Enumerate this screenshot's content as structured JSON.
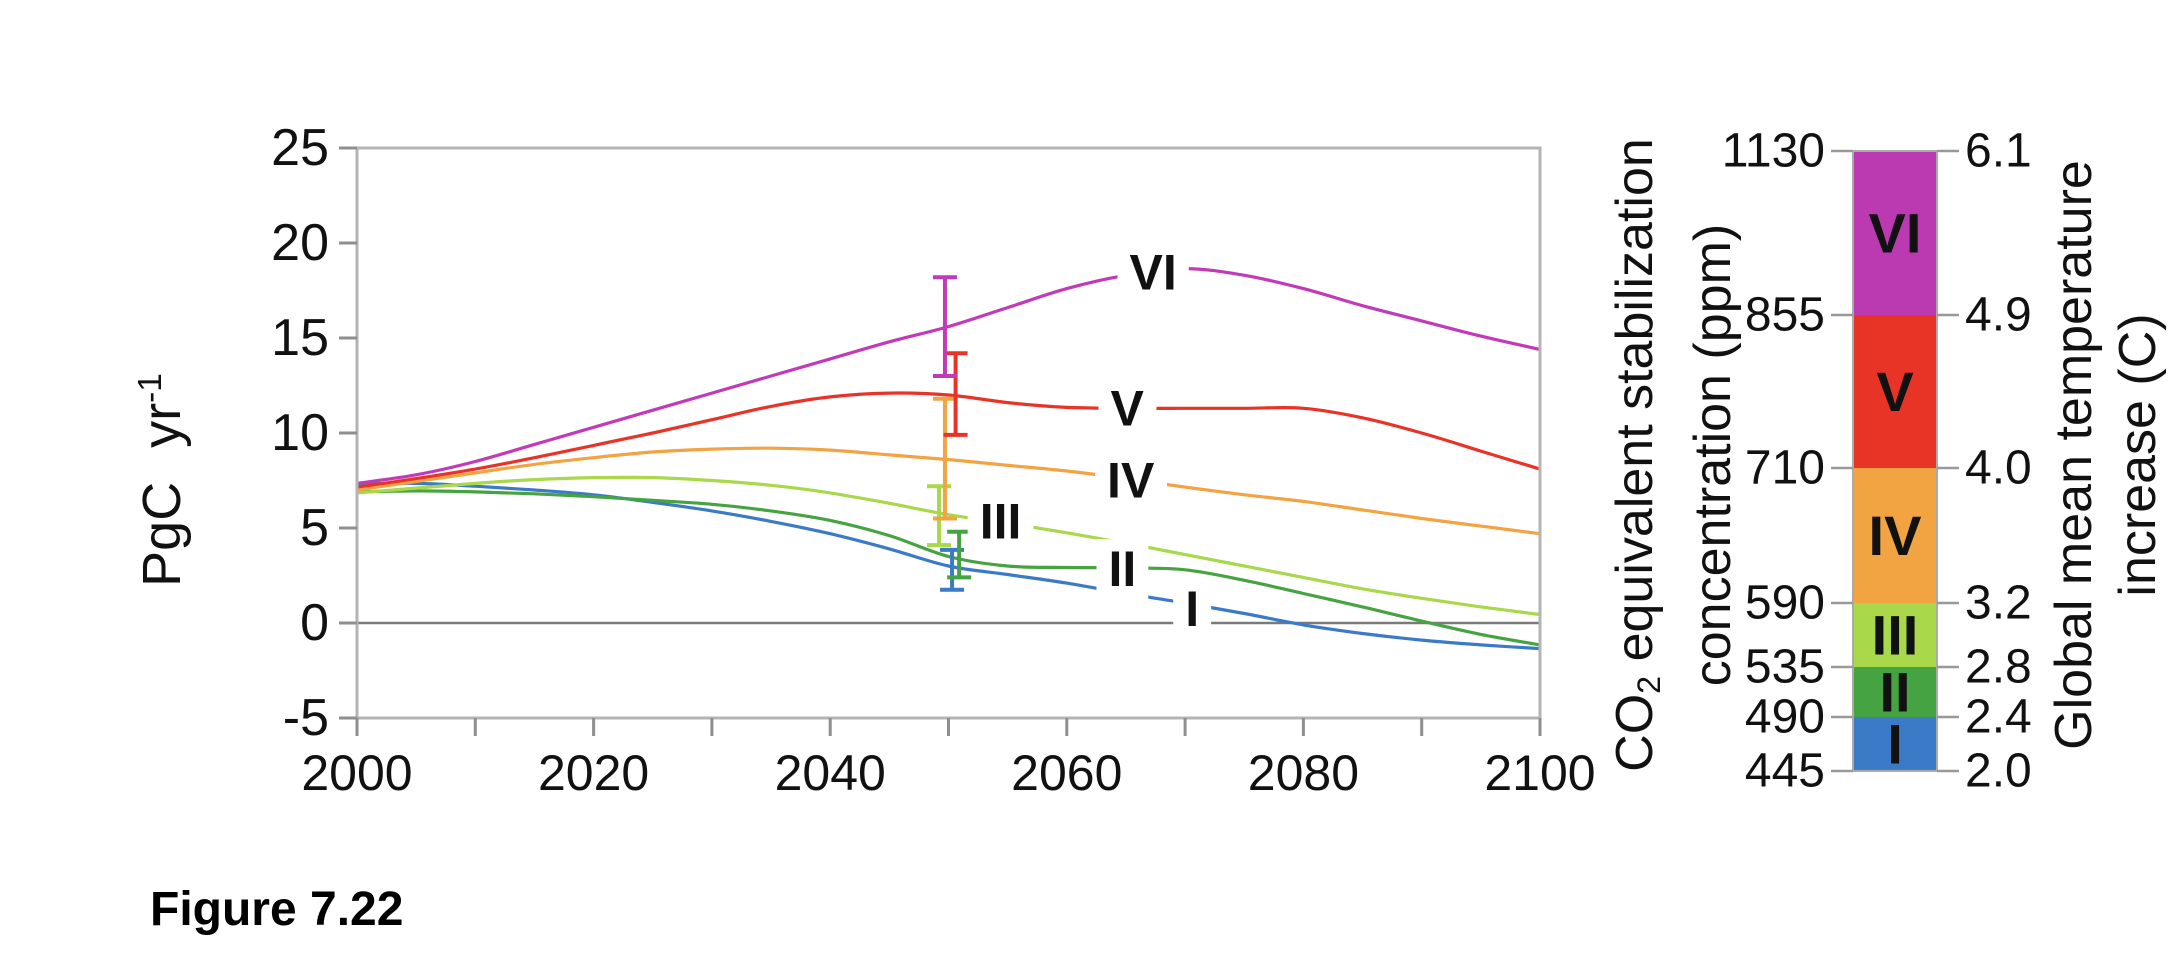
{
  "figure": {
    "caption": "Figure 7.22"
  },
  "axes": {
    "ylabel_base": "PgC yr",
    "ylabel_sup": "-1",
    "x_tick_labels": [
      "2000",
      "2020",
      "2040",
      "2060",
      "2080",
      "2100"
    ],
    "x_tick_years_labeled": [
      2000,
      2020,
      2040,
      2060,
      2080,
      2100
    ],
    "x_tick_years_minor": [
      2010,
      2030,
      2050,
      2070,
      2090
    ],
    "y_tick_values": [
      25,
      20,
      15,
      10,
      5,
      0,
      -5
    ],
    "y_tick_labels": [
      "25",
      "20",
      "15",
      "10",
      "5",
      "0",
      "-5"
    ]
  },
  "chart_data": {
    "type": "line",
    "title": "",
    "xlabel": "",
    "ylabel": "PgC yr-1",
    "xlim": [
      2000,
      2100
    ],
    "ylim": [
      -5,
      25
    ],
    "grid": false,
    "zero_line": true,
    "legend_position": "right-colorbar",
    "x": [
      2000,
      2005,
      2010,
      2015,
      2020,
      2025,
      2030,
      2035,
      2040,
      2045,
      2050,
      2055,
      2060,
      2065,
      2070,
      2075,
      2080,
      2085,
      2090,
      2095,
      2100
    ],
    "series": [
      {
        "name": "I",
        "color": "#3b7ac6",
        "values": [
          7.3,
          7.35,
          7.2,
          7.0,
          6.75,
          6.35,
          5.9,
          5.35,
          4.7,
          3.9,
          3.0,
          2.55,
          2.1,
          1.55,
          1.05,
          0.5,
          -0.1,
          -0.55,
          -0.9,
          -1.15,
          -1.35
        ],
        "label": {
          "x": 2070.6,
          "y": 0.75
        },
        "errorbar": {
          "x": 2050.3,
          "lo": 1.75,
          "hi": 3.85
        }
      },
      {
        "name": "II",
        "color": "#46a341",
        "values": [
          6.9,
          6.95,
          6.9,
          6.8,
          6.65,
          6.45,
          6.25,
          5.9,
          5.4,
          4.6,
          3.5,
          3.0,
          2.92,
          2.9,
          2.8,
          2.25,
          1.55,
          0.85,
          0.1,
          -0.6,
          -1.15
        ],
        "label": {
          "x": 2064.7,
          "y": 2.83
        },
        "errorbar": {
          "x": 2050.9,
          "lo": 2.4,
          "hi": 4.8
        }
      },
      {
        "name": "III",
        "color": "#a9d84b",
        "values": [
          6.85,
          7.1,
          7.35,
          7.55,
          7.65,
          7.65,
          7.5,
          7.25,
          6.85,
          6.3,
          5.7,
          5.25,
          4.75,
          4.2,
          3.6,
          3.0,
          2.4,
          1.8,
          1.3,
          0.85,
          0.45
        ],
        "label": {
          "x": 2054.4,
          "y": 5.35
        },
        "errorbar": {
          "x": 2049.2,
          "lo": 4.1,
          "hi": 7.2
        }
      },
      {
        "name": "IV",
        "color": "#f2a342",
        "values": [
          7.0,
          7.45,
          7.9,
          8.35,
          8.7,
          9.0,
          9.15,
          9.2,
          9.1,
          8.85,
          8.6,
          8.3,
          8.0,
          7.6,
          7.15,
          6.75,
          6.4,
          5.95,
          5.5,
          5.1,
          4.7
        ],
        "label": {
          "x": 2065.4,
          "y": 7.5
        },
        "errorbar": {
          "x": 2049.7,
          "lo": 5.5,
          "hi": 11.8
        }
      },
      {
        "name": "V",
        "color": "#e83327",
        "values": [
          7.15,
          7.6,
          8.1,
          8.7,
          9.35,
          10.0,
          10.7,
          11.4,
          11.9,
          12.1,
          12.0,
          11.6,
          11.35,
          11.3,
          11.3,
          11.3,
          11.3,
          10.8,
          10.0,
          9.05,
          8.1
        ],
        "label": {
          "x": 2065.1,
          "y": 11.3
        },
        "errorbar": {
          "x": 2050.6,
          "lo": 9.9,
          "hi": 14.2
        }
      },
      {
        "name": "VI",
        "color": "#c23ab8",
        "values": [
          7.35,
          7.8,
          8.5,
          9.4,
          10.3,
          11.2,
          12.1,
          13.0,
          13.9,
          14.8,
          15.6,
          16.6,
          17.6,
          18.3,
          18.65,
          18.3,
          17.6,
          16.7,
          15.9,
          15.1,
          14.4
        ],
        "label": {
          "x": 2067.3,
          "y": 18.45
        },
        "errorbar": {
          "x": 2049.7,
          "lo": 13.0,
          "hi": 18.2
        }
      }
    ]
  },
  "colorbar": {
    "left_title_line1_base": "CO",
    "left_title_line1_sub": "2",
    "left_title_line1_rest": " equivalent stabilization",
    "left_title_line2": "concentration (ppm)",
    "right_title_line1": "Global mean temperature",
    "right_title_line2": "increase (C)",
    "levels_ppm": [
      "1130",
      "855",
      "710",
      "590",
      "535",
      "490",
      "445"
    ],
    "levels_temp": [
      "6.1",
      "4.9",
      "4.0",
      "3.2",
      "2.8",
      "2.4",
      "2.0"
    ],
    "segments": [
      {
        "name": "VI",
        "color": "#bb3ab1",
        "ppm_range": [
          855,
          1130
        ],
        "temp_range": [
          4.9,
          6.1
        ]
      },
      {
        "name": "V",
        "color": "#e83327",
        "ppm_range": [
          710,
          855
        ],
        "temp_range": [
          4.0,
          4.9
        ]
      },
      {
        "name": "IV",
        "color": "#f2a342",
        "ppm_range": [
          590,
          710
        ],
        "temp_range": [
          3.2,
          4.0
        ]
      },
      {
        "name": "III",
        "color": "#a9d84b",
        "ppm_range": [
          535,
          590
        ],
        "temp_range": [
          2.8,
          3.2
        ]
      },
      {
        "name": "II",
        "color": "#46a341",
        "ppm_range": [
          490,
          535
        ],
        "temp_range": [
          2.4,
          2.8
        ]
      },
      {
        "name": "I",
        "color": "#3b7ac6",
        "ppm_range": [
          445,
          490
        ],
        "temp_range": [
          2.0,
          2.4
        ]
      }
    ]
  }
}
